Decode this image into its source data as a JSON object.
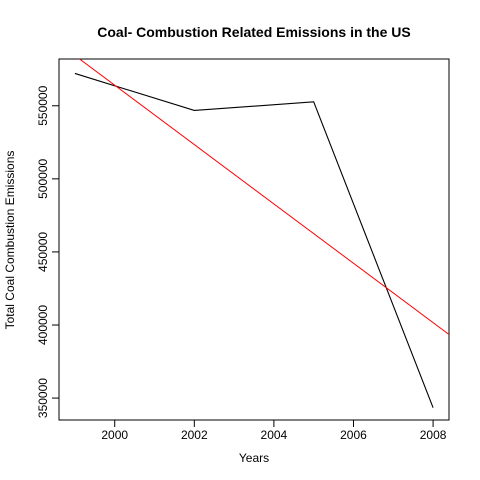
{
  "chart_data": {
    "type": "line",
    "title": "Coal- Combustion Related Emissions in the US",
    "xlabel": "Years",
    "ylabel": "Total Coal Combustion Emissions",
    "xlim": [
      1998.6,
      2008.4
    ],
    "ylim": [
      335000,
      582000
    ],
    "x_ticks": [
      2000,
      2002,
      2004,
      2006,
      2008
    ],
    "y_ticks": [
      350000,
      400000,
      450000,
      500000,
      550000
    ],
    "grid": false,
    "series": [
      {
        "x": [
          1999,
          2002,
          2005,
          2008
        ],
        "values": [
          572127,
          546789,
          552675,
          343432
        ],
        "color": "#000000"
      }
    ],
    "trend_line": {
      "x": [
        1998.6,
        2008.4
      ],
      "values": [
        592500,
        393500
      ],
      "color": "#ff0000"
    }
  }
}
